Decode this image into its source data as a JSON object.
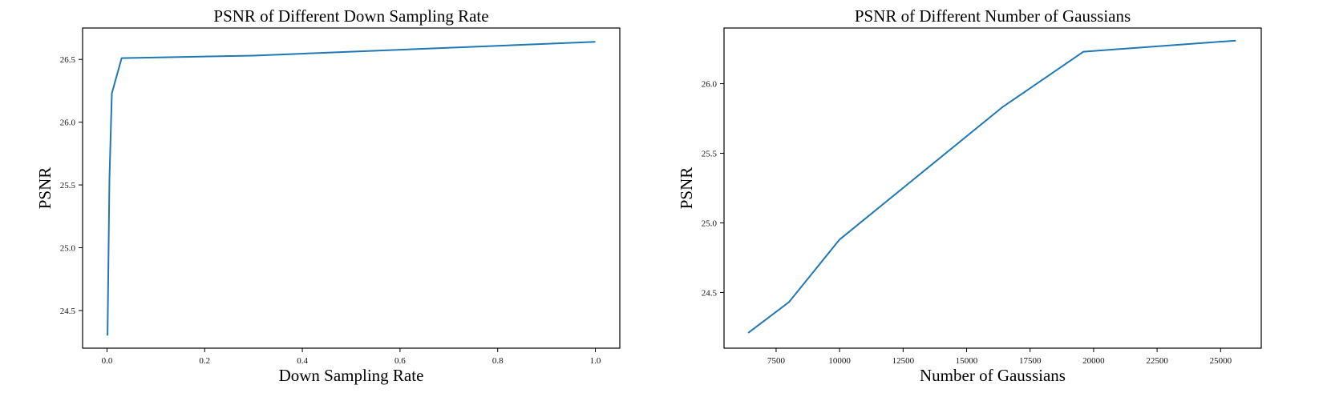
{
  "colors": {
    "series": "#1f77b4"
  },
  "chart_data": [
    {
      "type": "line",
      "title": "PSNR of Different Down Sampling Rate",
      "xlabel": "Down Sampling Rate",
      "ylabel": "PSNR",
      "xlim": [
        -0.05,
        1.05
      ],
      "ylim": [
        24.2,
        26.75
      ],
      "xticks": [
        0.0,
        0.2,
        0.4,
        0.6,
        0.8,
        1.0
      ],
      "xtick_labels": [
        "0.0",
        "0.2",
        "0.4",
        "0.6",
        "0.8",
        "1.0"
      ],
      "yticks": [
        24.5,
        25.0,
        25.5,
        26.0,
        26.5
      ],
      "ytick_labels": [
        "24.5",
        "25.0",
        "25.5",
        "26.0",
        "26.5"
      ],
      "grid": false,
      "series": [
        {
          "x": [
            0.001,
            0.005,
            0.01,
            0.03,
            0.3,
            1.0
          ],
          "y": [
            24.3,
            25.55,
            26.23,
            26.51,
            26.53,
            26.64
          ]
        }
      ]
    },
    {
      "type": "line",
      "title": "PSNR of Different Number of Gaussians",
      "xlabel": "Number of Gaussians",
      "ylabel": "PSNR",
      "xlim": [
        5450,
        26600
      ],
      "ylim": [
        24.1,
        26.4
      ],
      "xticks": [
        7500,
        10000,
        12500,
        15000,
        17500,
        20000,
        22500,
        25000
      ],
      "xtick_labels": [
        "7500",
        "10000",
        "12500",
        "15000",
        "17500",
        "20000",
        "22500",
        "25000"
      ],
      "yticks": [
        24.5,
        25.0,
        25.5,
        26.0
      ],
      "ytick_labels": [
        "24.5",
        "25.0",
        "25.5",
        "26.0"
      ],
      "grid": false,
      "series": [
        {
          "x": [
            6400,
            8000,
            10000,
            16400,
            19600,
            25600
          ],
          "y": [
            24.21,
            24.43,
            24.88,
            25.83,
            26.23,
            26.31
          ]
        }
      ]
    }
  ]
}
